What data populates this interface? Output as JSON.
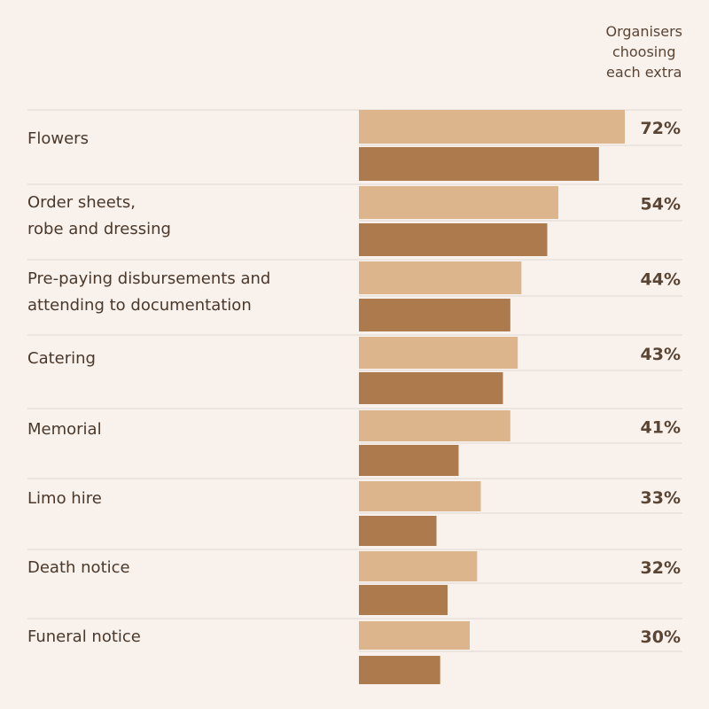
{
  "header": {
    "lines": [
      "Organisers",
      "choosing",
      "each extra"
    ]
  },
  "colors": {
    "background": "#f8f1ec",
    "bar_light": "#dcb58c",
    "bar_dark": "#ad7a4e",
    "divider": "#e0d8d1",
    "text": "#4a382b",
    "value_text": "#5a4534"
  },
  "chart_data": {
    "type": "bar",
    "orientation": "horizontal",
    "categories": [
      [
        "Flowers"
      ],
      [
        "Order sheets,",
        "robe and dressing"
      ],
      [
        "Pre-paying disbursements and",
        "attending to documentation"
      ],
      [
        "Catering"
      ],
      [
        "Memorial"
      ],
      [
        "Limo hire"
      ],
      [
        "Death notice"
      ],
      [
        "Funeral notice"
      ]
    ],
    "series": [
      {
        "values": [
          72,
          54,
          44,
          43,
          41,
          33,
          32,
          30
        ],
        "color": "#dcb58c"
      },
      {
        "values": [
          65,
          51,
          41,
          39,
          27,
          21,
          24,
          22
        ],
        "color": "#ad7a4e"
      }
    ],
    "value_labels": [
      "72%",
      "54%",
      "44%",
      "43%",
      "41%",
      "33%",
      "32%",
      "30%"
    ],
    "xlim": [
      0,
      72
    ],
    "legend": "none",
    "grid": false
  }
}
